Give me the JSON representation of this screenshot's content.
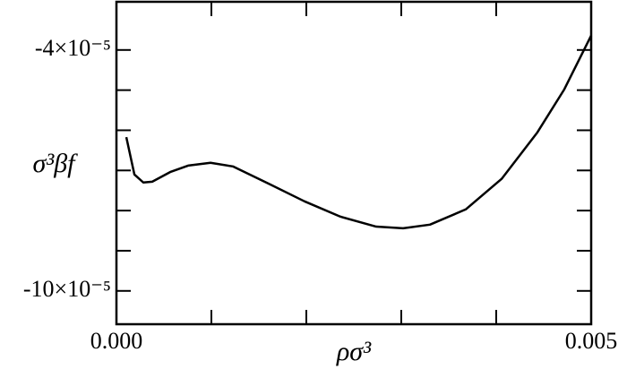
{
  "chart_data": {
    "type": "line",
    "x_label": "ρσ³",
    "y_label": "σ³βf",
    "x": [
      0.000104,
      0.000189,
      0.000283,
      0.000377,
      0.000566,
      0.000755,
      0.000991,
      0.001226,
      0.001604,
      0.001981,
      0.002358,
      0.002736,
      0.003019,
      0.003302,
      0.003679,
      0.004057,
      0.004434,
      0.004717,
      0.005
    ],
    "series": [
      {
        "color": "#000000",
        "values": [
          -6.17e-05,
          -7.1e-05,
          -7.3e-05,
          -7.28e-05,
          -7.04e-05,
          -6.88e-05,
          -6.81e-05,
          -6.9e-05,
          -7.33e-05,
          -7.77e-05,
          -8.15e-05,
          -8.4e-05,
          -8.44e-05,
          -8.35e-05,
          -7.97e-05,
          -7.21e-05,
          -6.05e-05,
          -4.98e-05,
          -3.64e-05
        ]
      }
    ],
    "xlim": [
      0,
      0.005
    ],
    "xticks": [
      {
        "value": 0,
        "label": "0.000"
      },
      {
        "value": 0.005,
        "label": "0.005"
      }
    ],
    "xminor_ticks": [
      0.001,
      0.002,
      0.003,
      0.004
    ],
    "ylim": [
      -0.0001083,
      -2.8e-05
    ],
    "yticks": [
      {
        "value": -4e-05,
        "label": "-4×10⁻⁵"
      },
      {
        "value": -0.0001,
        "label": "-10×10⁻⁵"
      }
    ],
    "yminor_ticks": [
      -5e-05,
      -6e-05,
      -7e-05,
      -8e-05,
      -9e-05
    ]
  }
}
